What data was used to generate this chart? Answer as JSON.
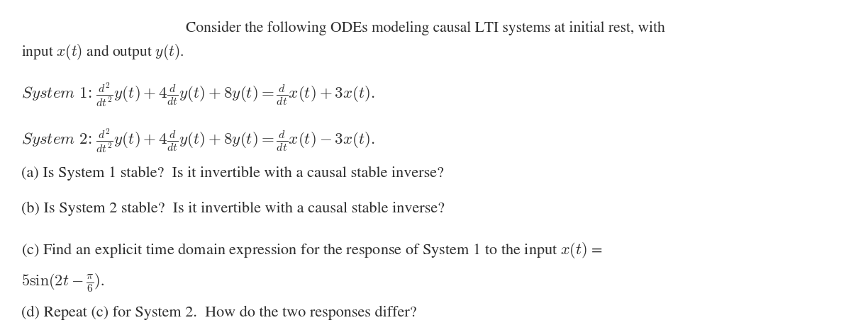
{
  "figsize": [
    12.0,
    4.6
  ],
  "dpi": 100,
  "background_color": "#ffffff",
  "text_color": "#2e2e2e",
  "font_size_intro": 15.5,
  "font_size_equations": 16.5,
  "font_size_parts": 16.0,
  "intro_line1": "Consider the following ODEs modeling causal LTI systems at initial rest, with",
  "intro_line2": "input $x(t)$ and output $y(t)$.",
  "system1": "$System\\ 1$: $\\dfrac{d^2}{dt^2}y(t) + 4\\dfrac{d}{dt}y(t) + 8y(t) = \\dfrac{d}{dt}x(t) + 3x(t).$",
  "system2": "$System\\ 2$: $\\dfrac{d^2}{dt^2}y(t) + 4\\dfrac{d}{dt}y(t) + 8y(t) = \\dfrac{d}{dt}x(t) - 3x(t).$",
  "part_a": "(a) Is System 1 stable?  Is it invertible with a causal stable inverse?",
  "part_b": "(b) Is System 2 stable?  Is it invertible with a causal stable inverse?",
  "part_c_line1": "(c) Find an explicit time domain expression for the response of System 1 to the input $x(t)$ =",
  "part_c_line2": "$5\\sin(2t - \\dfrac{\\pi}{6})$.",
  "part_d": "(d) Repeat (c) for System 2.  How do the two responses differ?"
}
